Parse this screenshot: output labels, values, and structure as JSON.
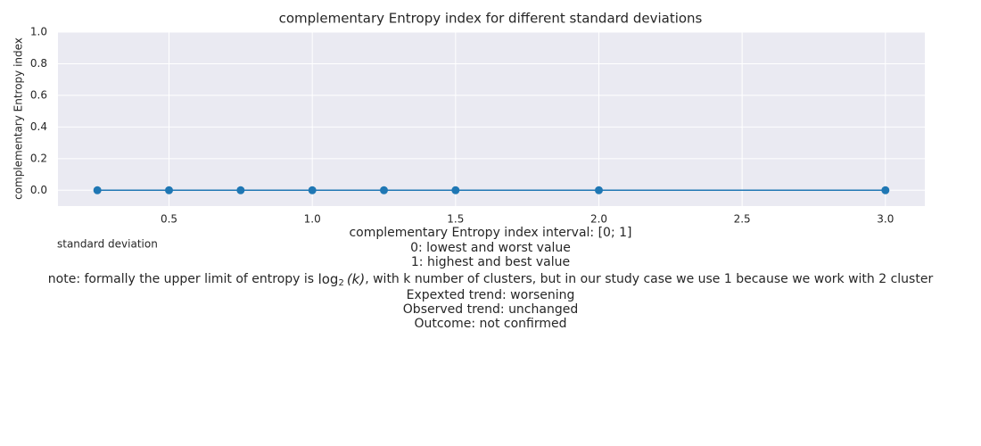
{
  "chart_data": {
    "type": "line",
    "title": "complementary Entropy index for different standard deviations",
    "x_label": "standard deviation",
    "y_label": "complementary Entropy index",
    "x": [
      0.25,
      0.5,
      0.75,
      1.0,
      1.25,
      1.5,
      2.0,
      3.0
    ],
    "series": [
      {
        "color": "#1f77b4",
        "values": [
          0,
          0,
          0,
          0,
          0,
          0,
          0,
          0
        ]
      }
    ],
    "xlim": [
      0.1125,
      3.1375
    ],
    "ylim": [
      -0.1,
      1.0
    ],
    "xticks": [
      0.5,
      {
        "value": 1,
        "label": "1.0"
      },
      1.5,
      {
        "value": 2,
        "label": "2.0"
      },
      2.5,
      {
        "value": 3,
        "label": "3.0"
      }
    ],
    "yticks": [
      {
        "value": 0,
        "label": "0.0"
      },
      0.2,
      0.4,
      0.6,
      0.8,
      {
        "value": 1,
        "label": "1.0"
      }
    ],
    "grid": true,
    "plot_background": "#eaeaf2",
    "annotations": [
      "complementary Entropy index interval: [0; 1]",
      "0: lowest and worst value",
      "1: highest and best value",
      {
        "before": "note: formally the upper limit of entropy is ",
        "math_base": "log",
        "math_sub": "2",
        "math_arg": "(k)",
        "after": ", with k number of clusters, but in our study case we use 1 because we work with 2 cluster"
      },
      "Expexted trend: worsening",
      "Observed trend: unchanged",
      "Outcome: not confirmed"
    ]
  }
}
